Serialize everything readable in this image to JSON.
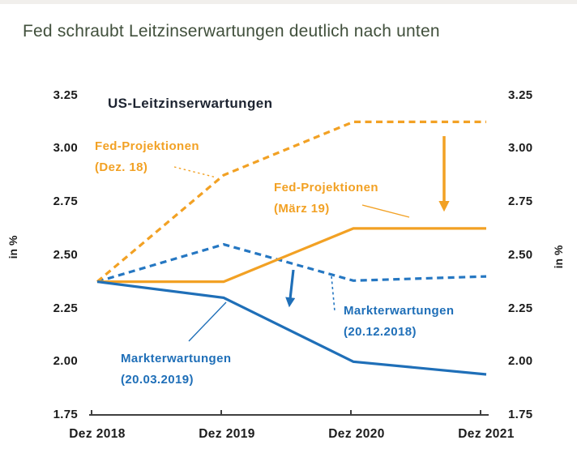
{
  "page": {
    "title": "Fed schraubt Leitzinserwartungen deutlich nach unten"
  },
  "colors": {
    "orange": "#f2a124",
    "blue": "#1f6fb8",
    "blue_dashed": "#2577c2",
    "axis": "#3f3f3f",
    "tick_text": "#1b1b1b",
    "chart_title_text": "#1d2431",
    "page_title_text": "#41503c"
  },
  "chart_data": {
    "type": "line",
    "title": "US-Leitzinserwartungen",
    "ylabel_left": "in %",
    "ylabel_right": "in %",
    "ylim": [
      1.75,
      3.25
    ],
    "yticks": [
      "3.25",
      "3.00",
      "2.75",
      "2.50",
      "2.25",
      "2.00",
      "1.75"
    ],
    "categories": [
      "Dez 2018",
      "Dez 2019",
      "Dez 2020",
      "Dez 2021"
    ],
    "grid": false,
    "legend_position": "annotated-inline",
    "series": [
      {
        "id": "markterwartungen-20-12-2018",
        "name": "Markterwartungen (20.12.2018)",
        "style": "dashed",
        "color_key": "blue_dashed",
        "values": [
          2.375,
          2.55,
          2.38,
          2.4
        ]
      },
      {
        "id": "fed-projektionen-dez-18",
        "name": "Fed-Projektionen (Dez. 18)",
        "style": "dashed",
        "color_key": "orange",
        "values": [
          2.375,
          2.875,
          3.125,
          3.125
        ]
      },
      {
        "id": "fed-projektionen-maerz-19",
        "name": "Fed-Projektionen (März 19)",
        "style": "solid",
        "color_key": "orange",
        "values": [
          2.375,
          2.375,
          2.625,
          2.625
        ]
      },
      {
        "id": "markterwartungen-20-03-2019",
        "name": "Markterwartungen (20.03.2019)",
        "style": "solid",
        "color_key": "blue",
        "values": [
          2.375,
          2.3,
          2.0,
          1.94
        ]
      }
    ],
    "annotations": [
      {
        "id": "fed-dez18-label",
        "lines": [
          "Fed-Projektionen",
          "(Dez. 18)"
        ],
        "color_key": "orange"
      },
      {
        "id": "fed-maerz19-label",
        "lines": [
          "Fed-Projektionen",
          "(März 19)"
        ],
        "color_key": "orange"
      },
      {
        "id": "markt-dez18-label",
        "lines": [
          "Markterwartungen",
          "(20.12.2018)"
        ],
        "color_key": "blue"
      },
      {
        "id": "markt-maerz19-label",
        "lines": [
          "Markterwartungen",
          "(20.03.2019)"
        ],
        "color_key": "blue"
      }
    ]
  }
}
